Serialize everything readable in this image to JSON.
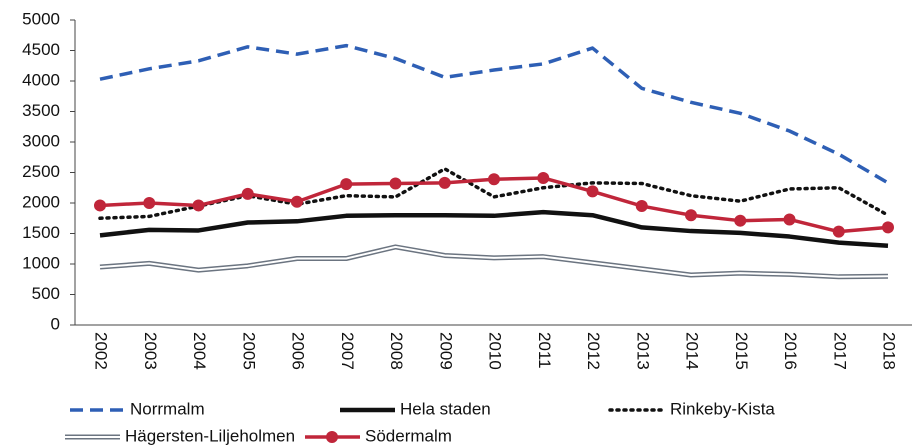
{
  "chart_data": {
    "type": "line",
    "categories": [
      "2002",
      "2003",
      "2004",
      "2005",
      "2006",
      "2007",
      "2008",
      "2009",
      "2010",
      "2011",
      "2012",
      "2013",
      "2014",
      "2015",
      "2016",
      "2017",
      "2018"
    ],
    "series": [
      {
        "name": "Norrmalm",
        "color": "#2e5fb5",
        "line_style": "dashed",
        "markers": false,
        "values": [
          4030,
          4200,
          4330,
          4560,
          4440,
          4580,
          4370,
          4060,
          4180,
          4280,
          4540,
          3880,
          3650,
          3470,
          3180,
          2800,
          2330
        ]
      },
      {
        "name": "Hela staden",
        "color": "#111111",
        "line_style": "solid",
        "markers": false,
        "values": [
          1470,
          1560,
          1550,
          1680,
          1700,
          1790,
          1800,
          1800,
          1790,
          1850,
          1800,
          1600,
          1540,
          1510,
          1450,
          1350,
          1300
        ]
      },
      {
        "name": "Rinkeby-Kista",
        "color": "#111111",
        "line_style": "dotted",
        "markers": false,
        "values": [
          1750,
          1780,
          1950,
          2120,
          1980,
          2120,
          2100,
          2560,
          2100,
          2250,
          2330,
          2320,
          2120,
          2030,
          2230,
          2250,
          1800
        ]
      },
      {
        "name": "Hägersten-Liljeholmen",
        "color": "#6b7480",
        "line_style": "double",
        "markers": false,
        "values": [
          950,
          1010,
          900,
          970,
          1090,
          1090,
          1280,
          1140,
          1100,
          1120,
          1020,
          920,
          820,
          850,
          830,
          790,
          800
        ]
      },
      {
        "name": "Södermalm",
        "color": "#c0263a",
        "line_style": "solid",
        "markers": true,
        "values": [
          1960,
          2000,
          1960,
          2150,
          2020,
          2310,
          2320,
          2330,
          2390,
          2410,
          2190,
          1950,
          1800,
          1710,
          1730,
          1530,
          1600
        ]
      }
    ],
    "ylim": [
      0,
      5000
    ],
    "yticks": [
      0,
      500,
      1000,
      1500,
      2000,
      2500,
      3000,
      3500,
      4000,
      4500,
      5000
    ],
    "grid": false
  }
}
